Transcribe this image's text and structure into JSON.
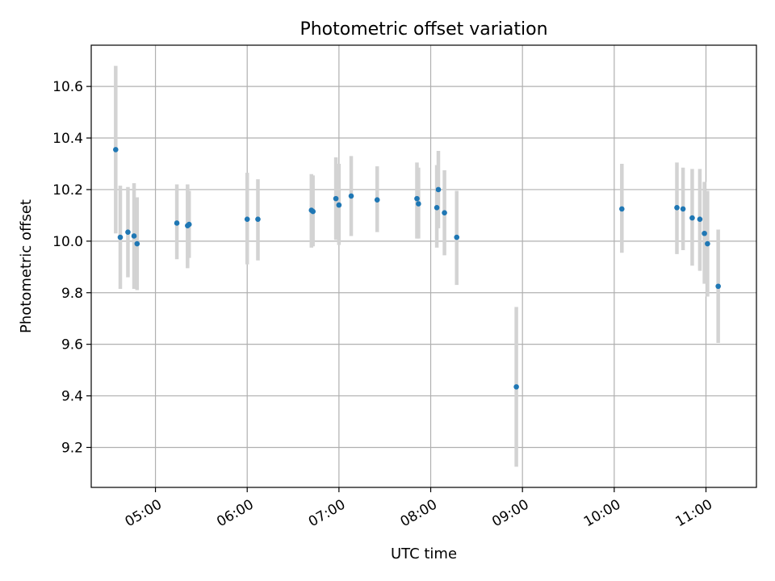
{
  "chart_data": {
    "type": "scatter",
    "title": "Photometric offset variation",
    "xlabel": "UTC time",
    "ylabel": "Photometric offset",
    "x_type": "time",
    "xlim": [
      "04:18",
      "11:33"
    ],
    "ylim": [
      9.045,
      10.76
    ],
    "x_ticks": [
      "05:00",
      "06:00",
      "07:00",
      "08:00",
      "09:00",
      "10:00",
      "11:00"
    ],
    "y_ticks": [
      9.2,
      9.4,
      9.6,
      9.8,
      10.0,
      10.2,
      10.4,
      10.6
    ],
    "y_tick_labels": [
      "9.2",
      "9.4",
      "9.6",
      "9.8",
      "10.0",
      "10.2",
      "10.4",
      "10.6"
    ],
    "grid": true,
    "colors": {
      "marker": "#1f77b4",
      "errorbar": "#d3d3d3",
      "grid": "#b0b0b0"
    },
    "points": [
      {
        "x": "04:34",
        "y": 10.355,
        "ylo": 10.03,
        "yhi": 10.68
      },
      {
        "x": "04:37",
        "y": 10.015,
        "ylo": 9.815,
        "yhi": 10.215
      },
      {
        "x": "04:42",
        "y": 10.035,
        "ylo": 9.86,
        "yhi": 10.21
      },
      {
        "x": "04:46",
        "y": 10.02,
        "ylo": 9.815,
        "yhi": 10.225
      },
      {
        "x": "04:48",
        "y": 9.99,
        "ylo": 9.81,
        "yhi": 10.17
      },
      {
        "x": "05:14",
        "y": 10.07,
        "ylo": 9.93,
        "yhi": 10.22
      },
      {
        "x": "05:21",
        "y": 10.06,
        "ylo": 9.895,
        "yhi": 10.22
      },
      {
        "x": "05:22",
        "y": 10.065,
        "ylo": 9.935,
        "yhi": 10.195
      },
      {
        "x": "06:00",
        "y": 10.085,
        "ylo": 9.91,
        "yhi": 10.265
      },
      {
        "x": "06:07",
        "y": 10.085,
        "ylo": 9.925,
        "yhi": 10.24
      },
      {
        "x": "06:42",
        "y": 10.12,
        "ylo": 9.975,
        "yhi": 10.26
      },
      {
        "x": "06:43",
        "y": 10.115,
        "ylo": 9.98,
        "yhi": 10.255
      },
      {
        "x": "06:58",
        "y": 10.165,
        "ylo": 10.005,
        "yhi": 10.325
      },
      {
        "x": "07:00",
        "y": 10.14,
        "ylo": 9.985,
        "yhi": 10.3
      },
      {
        "x": "07:08",
        "y": 10.175,
        "ylo": 10.02,
        "yhi": 10.33
      },
      {
        "x": "07:25",
        "y": 10.16,
        "ylo": 10.035,
        "yhi": 10.29
      },
      {
        "x": "07:51",
        "y": 10.165,
        "ylo": 10.01,
        "yhi": 10.305
      },
      {
        "x": "07:52",
        "y": 10.145,
        "ylo": 10.01,
        "yhi": 10.285
      },
      {
        "x": "08:04",
        "y": 10.13,
        "ylo": 9.975,
        "yhi": 10.295
      },
      {
        "x": "08:05",
        "y": 10.2,
        "ylo": 10.05,
        "yhi": 10.35
      },
      {
        "x": "08:09",
        "y": 10.11,
        "ylo": 9.945,
        "yhi": 10.275
      },
      {
        "x": "08:17",
        "y": 10.015,
        "ylo": 9.83,
        "yhi": 10.195
      },
      {
        "x": "08:56",
        "y": 9.435,
        "ylo": 9.125,
        "yhi": 9.745
      },
      {
        "x": "10:05",
        "y": 10.125,
        "ylo": 9.955,
        "yhi": 10.3
      },
      {
        "x": "10:41",
        "y": 10.13,
        "ylo": 9.95,
        "yhi": 10.305
      },
      {
        "x": "10:45",
        "y": 10.125,
        "ylo": 9.965,
        "yhi": 10.285
      },
      {
        "x": "10:51",
        "y": 10.09,
        "ylo": 9.905,
        "yhi": 10.28
      },
      {
        "x": "10:56",
        "y": 10.085,
        "ylo": 9.885,
        "yhi": 10.28
      },
      {
        "x": "10:59",
        "y": 10.03,
        "ylo": 9.835,
        "yhi": 10.23
      },
      {
        "x": "11:01",
        "y": 9.99,
        "ylo": 9.785,
        "yhi": 10.195
      },
      {
        "x": "11:08",
        "y": 9.825,
        "ylo": 9.605,
        "yhi": 10.045
      }
    ]
  }
}
